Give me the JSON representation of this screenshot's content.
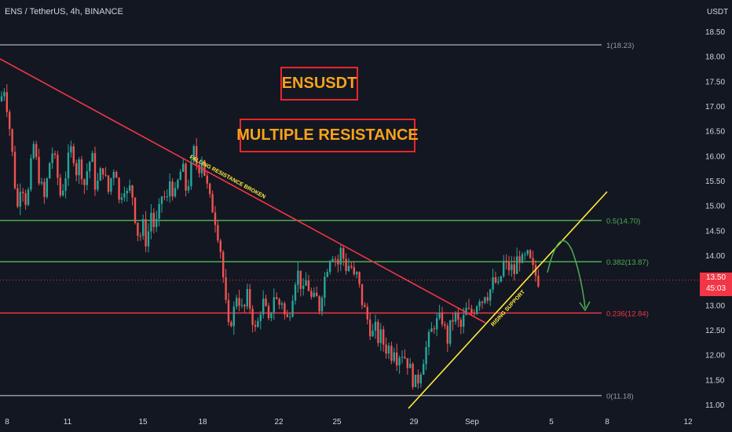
{
  "header": {
    "symbol_line": "ENS / TetherUS, 4h, BINANCE"
  },
  "annotations": {
    "title": "ENSUSDT",
    "subtitle": "MULTIPLE RESISTANCE",
    "falling_line_label": "FALLING RESISTANCE BROKEN",
    "rising_line_label": "RISING SUPPORT"
  },
  "price_tag": {
    "price": "13.50",
    "countdown": "45:03"
  },
  "colors": {
    "background": "#131722",
    "up": "#26a69a",
    "down": "#ef5350",
    "fib_grey": "#9598a1",
    "fib_green": "#4caf50",
    "fib_red": "#f23645",
    "falling_line": "#f23645",
    "rising_line": "#ffeb3b",
    "axis_text": "#d1d4dc",
    "title_text": "#f7a21b",
    "title_border": "#e8262a",
    "projection": "#4caf50"
  },
  "chart_data": {
    "type": "candlestick",
    "y_axis_unit": "USDT",
    "ylim": [
      10.93,
      18.75
    ],
    "y_ticks": [
      "18.50",
      "18.00",
      "17.50",
      "17.00",
      "16.50",
      "16.00",
      "15.50",
      "15.00",
      "14.50",
      "14.00",
      "13.50",
      "13.00",
      "12.50",
      "12.00",
      "11.50",
      "11.00"
    ],
    "x_ticks": [
      "8",
      "11",
      "15",
      "18",
      "22",
      "25",
      "29",
      "Sep",
      "5",
      "8",
      "12"
    ],
    "fib_levels": [
      {
        "label": "1(18.23)",
        "value": 18.23,
        "color": "#9598a1"
      },
      {
        "label": "0.5(14.70)",
        "value": 14.7,
        "color": "#4caf50"
      },
      {
        "label": "0.382(13.87)",
        "value": 13.87,
        "color": "#4caf50"
      },
      {
        "label": "0.236(12.84)",
        "value": 12.84,
        "color": "#f23645"
      },
      {
        "label": "0(11.18)",
        "value": 11.18,
        "color": "#9598a1"
      }
    ],
    "current_price": 13.5,
    "price_path": [
      [
        0,
        17.1
      ],
      [
        6,
        17.4
      ],
      [
        12,
        16.6
      ],
      [
        17,
        15.8
      ],
      [
        22,
        14.9
      ],
      [
        27,
        15.6
      ],
      [
        32,
        15.1
      ],
      [
        37,
        15.3
      ],
      [
        42,
        16.3
      ],
      [
        47,
        15.8
      ],
      [
        52,
        15.4
      ],
      [
        57,
        15.1
      ],
      [
        62,
        15.8
      ],
      [
        67,
        16.1
      ],
      [
        72,
        15.7
      ],
      [
        77,
        15.2
      ],
      [
        82,
        15.5
      ],
      [
        87,
        15.9
      ],
      [
        92,
        16.2
      ],
      [
        97,
        15.7
      ],
      [
        102,
        15.9
      ],
      [
        107,
        15.4
      ],
      [
        112,
        15.8
      ],
      [
        117,
        16.0
      ],
      [
        122,
        15.3
      ],
      [
        127,
        15.6
      ],
      [
        132,
        15.8
      ],
      [
        137,
        15.2
      ],
      [
        142,
        15.6
      ],
      [
        147,
        15.9
      ],
      [
        152,
        15.0
      ],
      [
        157,
        15.5
      ],
      [
        162,
        15.2
      ],
      [
        167,
        15.4
      ],
      [
        172,
        14.8
      ],
      [
        177,
        14.3
      ],
      [
        182,
        14.6
      ],
      [
        187,
        14.2
      ],
      [
        192,
        14.9
      ],
      [
        197,
        14.5
      ],
      [
        202,
        14.8
      ],
      [
        207,
        15.3
      ],
      [
        212,
        15.0
      ],
      [
        217,
        15.6
      ],
      [
        222,
        15.1
      ],
      [
        227,
        15.5
      ],
      [
        232,
        15.8
      ],
      [
        237,
        15.3
      ],
      [
        242,
        15.6
      ],
      [
        247,
        16.1
      ],
      [
        252,
        15.7
      ],
      [
        257,
        16.0
      ],
      [
        262,
        15.5
      ],
      [
        267,
        15.1
      ],
      [
        272,
        14.9
      ],
      [
        277,
        14.5
      ],
      [
        282,
        14.0
      ],
      [
        285,
        13.4
      ],
      [
        288,
        12.9
      ],
      [
        291,
        12.5
      ],
      [
        294,
        12.7
      ],
      [
        298,
        12.9
      ],
      [
        302,
        13.3
      ],
      [
        306,
        13.0
      ],
      [
        310,
        12.8
      ],
      [
        314,
        13.2
      ],
      [
        318,
        13.0
      ],
      [
        322,
        12.7
      ],
      [
        326,
        12.4
      ],
      [
        330,
        12.8
      ],
      [
        334,
        13.1
      ],
      [
        338,
        12.9
      ],
      [
        342,
        12.6
      ],
      [
        346,
        13.0
      ],
      [
        350,
        13.3
      ],
      [
        354,
        12.9
      ],
      [
        358,
        13.2
      ],
      [
        362,
        12.8
      ],
      [
        366,
        12.7
      ],
      [
        370,
        13.0
      ],
      [
        374,
        13.4
      ],
      [
        378,
        13.7
      ],
      [
        382,
        13.5
      ],
      [
        386,
        13.2
      ],
      [
        390,
        13.5
      ],
      [
        394,
        13.3
      ],
      [
        398,
        13.0
      ],
      [
        402,
        13.2
      ],
      [
        406,
        12.9
      ],
      [
        410,
        13.3
      ],
      [
        414,
        13.6
      ],
      [
        418,
        13.9
      ],
      [
        422,
        14.1
      ],
      [
        426,
        14.0
      ],
      [
        430,
        13.8
      ],
      [
        434,
        14.1
      ],
      [
        438,
        13.9
      ],
      [
        442,
        13.7
      ],
      [
        446,
        13.9
      ],
      [
        450,
        13.5
      ],
      [
        454,
        13.6
      ],
      [
        458,
        13.3
      ],
      [
        462,
        13.0
      ],
      [
        466,
        12.8
      ],
      [
        470,
        12.6
      ],
      [
        474,
        12.4
      ],
      [
        478,
        12.5
      ],
      [
        482,
        12.3
      ],
      [
        486,
        12.4
      ],
      [
        490,
        12.1
      ],
      [
        494,
        12.2
      ],
      [
        498,
        12.0
      ],
      [
        502,
        12.2
      ],
      [
        506,
        11.9
      ],
      [
        510,
        12.1
      ],
      [
        514,
        12.0
      ],
      [
        518,
        11.9
      ],
      [
        522,
        11.7
      ],
      [
        526,
        11.5
      ],
      [
        530,
        11.4
      ],
      [
        534,
        11.6
      ],
      [
        538,
        11.9
      ],
      [
        542,
        12.1
      ],
      [
        546,
        12.3
      ],
      [
        550,
        12.5
      ],
      [
        554,
        12.7
      ],
      [
        558,
        12.6
      ],
      [
        562,
        12.8
      ],
      [
        566,
        12.5
      ],
      [
        570,
        12.3
      ],
      [
        574,
        12.6
      ],
      [
        578,
        12.8
      ],
      [
        582,
        12.7
      ],
      [
        586,
        12.5
      ],
      [
        590,
        12.7
      ],
      [
        594,
        12.9
      ],
      [
        598,
        12.8
      ],
      [
        602,
        12.9
      ],
      [
        606,
        13.0
      ],
      [
        610,
        13.2
      ],
      [
        614,
        13.1
      ],
      [
        618,
        13.3
      ],
      [
        622,
        13.2
      ],
      [
        626,
        13.4
      ],
      [
        630,
        13.5
      ],
      [
        634,
        13.3
      ],
      [
        638,
        13.6
      ],
      [
        642,
        13.9
      ],
      [
        646,
        13.7
      ],
      [
        650,
        13.8
      ],
      [
        654,
        13.6
      ],
      [
        658,
        13.9
      ],
      [
        662,
        14.0
      ],
      [
        666,
        13.8
      ],
      [
        670,
        14.0
      ],
      [
        674,
        13.9
      ],
      [
        678,
        13.7
      ],
      [
        682,
        13.6
      ],
      [
        686,
        13.5
      ]
    ]
  }
}
